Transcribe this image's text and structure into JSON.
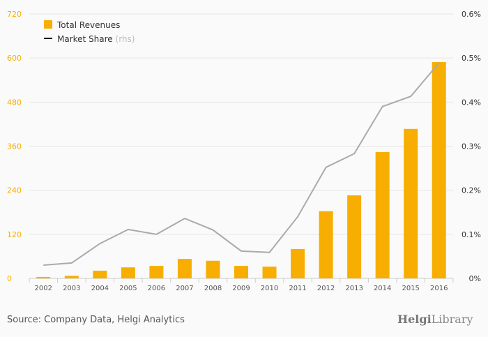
{
  "chart_data": {
    "type": "bar",
    "title": "",
    "categories": [
      "2002",
      "2003",
      "2004",
      "2005",
      "2006",
      "2007",
      "2008",
      "2009",
      "2010",
      "2011",
      "2012",
      "2013",
      "2014",
      "2015",
      "2016"
    ],
    "series": [
      {
        "name": "Total Revenues",
        "type": "bar",
        "axis": "left",
        "color": "#f7ae00",
        "values": [
          4,
          7,
          21,
          30,
          34,
          53,
          48,
          34,
          32,
          80,
          183,
          226,
          344,
          407,
          589
        ]
      },
      {
        "name": "Market Share",
        "suffix": "(rhs)",
        "type": "line",
        "axis": "right",
        "color": "#aaaaaa",
        "values": [
          0.03,
          0.035,
          0.079,
          0.111,
          0.1,
          0.136,
          0.11,
          0.062,
          0.059,
          0.14,
          0.252,
          0.283,
          0.39,
          0.413,
          0.489
        ]
      }
    ],
    "left_axis": {
      "ylim": [
        0,
        720
      ],
      "ticks": [
        "0",
        "120",
        "240",
        "360",
        "480",
        "600",
        "720"
      ],
      "color": "#f7ae00"
    },
    "right_axis": {
      "ylim": [
        0,
        0.6
      ],
      "ticks": [
        "0%",
        "0.1%",
        "0.2%",
        "0.3%",
        "0.4%",
        "0.5%",
        "0.6%"
      ]
    },
    "legend": {
      "placement": "top-left",
      "items": [
        "Total Revenues",
        "Market Share"
      ],
      "rhs_note": "(rhs)"
    },
    "grid": true
  },
  "footer": {
    "source": "Source: Company Data, Helgi Analytics",
    "logo_bold": "Helgi",
    "logo_light": "Library"
  }
}
